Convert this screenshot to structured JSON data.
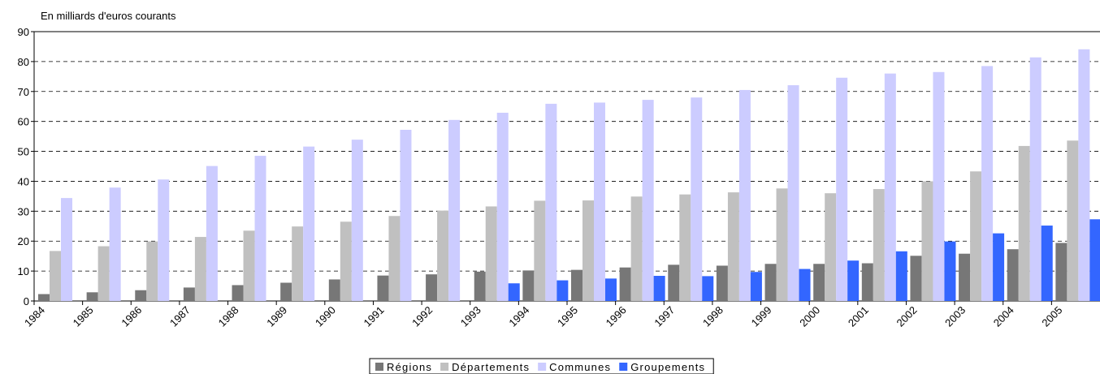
{
  "chart_data": {
    "type": "bar",
    "subtitle": "En milliards d'euros courants",
    "categories": [
      "1984",
      "1985",
      "1986",
      "1987",
      "1988",
      "1989",
      "1990",
      "1991",
      "1992",
      "1993",
      "1994",
      "1995",
      "1996",
      "1997",
      "1998",
      "1999",
      "2000",
      "2001",
      "2002",
      "2003",
      "2004",
      "2005"
    ],
    "series": [
      {
        "name": "Régions",
        "color": "#777777",
        "values": [
          2.3,
          2.9,
          3.6,
          4.5,
          5.3,
          6.1,
          7.2,
          8.5,
          8.9,
          9.8,
          10.2,
          10.4,
          11.2,
          12.1,
          11.8,
          12.4,
          12.4,
          12.6,
          15.1,
          15.8,
          17.3,
          19.4
        ]
      },
      {
        "name": "Départements",
        "color": "#c0c0c0",
        "values": [
          16.7,
          18.3,
          19.9,
          21.4,
          23.5,
          24.9,
          26.5,
          28.4,
          30.2,
          31.6,
          33.5,
          33.6,
          34.9,
          35.6,
          36.3,
          37.6,
          36.0,
          37.4,
          40.0,
          43.3,
          51.8,
          53.6
        ]
      },
      {
        "name": "Communes",
        "color": "#ccccff",
        "values": [
          34.4,
          37.9,
          40.6,
          45.1,
          48.5,
          51.6,
          53.9,
          57.2,
          60.5,
          62.9,
          65.9,
          66.3,
          67.2,
          68.0,
          70.5,
          72.1,
          74.6,
          76.0,
          76.5,
          78.5,
          81.4,
          84.1
        ]
      },
      {
        "name": "Groupements",
        "color": "#3366ff",
        "values": [
          null,
          null,
          null,
          null,
          null,
          null,
          null,
          null,
          null,
          5.9,
          6.9,
          7.5,
          8.4,
          8.3,
          9.7,
          10.7,
          13.5,
          16.6,
          19.9,
          22.6,
          25.2,
          27.3
        ]
      }
    ],
    "ylim": [
      0,
      90
    ],
    "yticks": [
      0,
      10,
      20,
      30,
      40,
      50,
      60,
      70,
      80,
      90
    ],
    "grid": true,
    "legend": "bottom"
  }
}
